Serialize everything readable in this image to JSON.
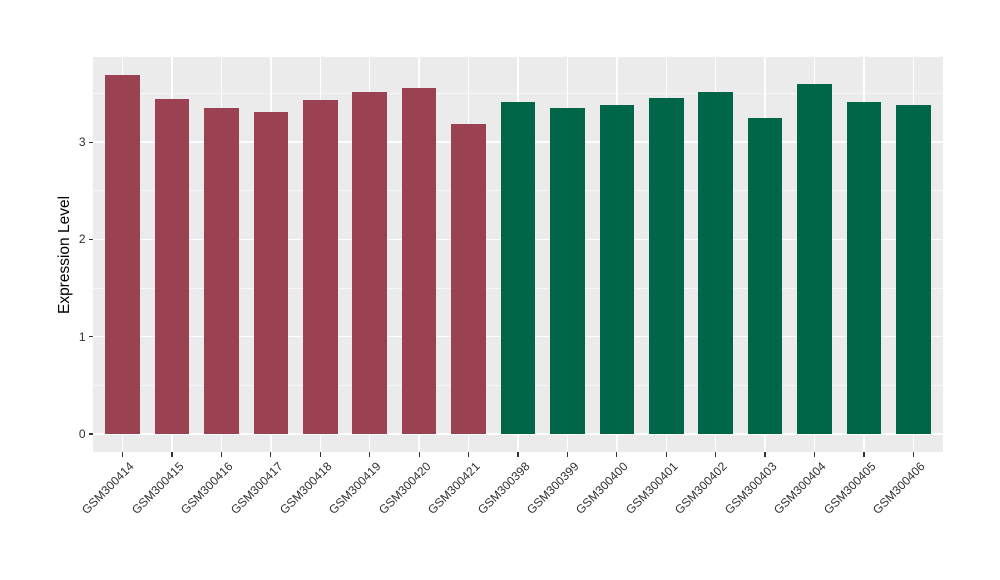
{
  "chart_data": {
    "type": "bar",
    "title": "",
    "xlabel": "",
    "ylabel": "Expression Level",
    "categories": [
      "GSM300414",
      "GSM300415",
      "GSM300416",
      "GSM300417",
      "GSM300418",
      "GSM300419",
      "GSM300420",
      "GSM300421",
      "GSM300398",
      "GSM300399",
      "GSM300400",
      "GSM300401",
      "GSM300402",
      "GSM300403",
      "GSM300404",
      "GSM300405",
      "GSM300406"
    ],
    "values": [
      3.69,
      3.44,
      3.35,
      3.31,
      3.43,
      3.51,
      3.56,
      3.19,
      3.41,
      3.35,
      3.38,
      3.45,
      3.51,
      3.25,
      3.6,
      3.41,
      3.38
    ],
    "groups": [
      "maroon",
      "maroon",
      "maroon",
      "maroon",
      "maroon",
      "maroon",
      "maroon",
      "maroon",
      "green",
      "green",
      "green",
      "green",
      "green",
      "green",
      "green",
      "green",
      "green"
    ],
    "colors": {
      "maroon": "#9A4252",
      "green": "#006648"
    },
    "y_ticks": [
      0,
      1,
      2,
      3
    ],
    "y_minor_ticks": [
      0.5,
      1.5,
      2.5,
      3.5
    ],
    "ylim": [
      -0.1845,
      3.8745
    ],
    "bar_width_fraction": 0.7,
    "panel_background": "#EBEBEB",
    "grid_color": "#FFFFFF",
    "legend_position": "none"
  }
}
